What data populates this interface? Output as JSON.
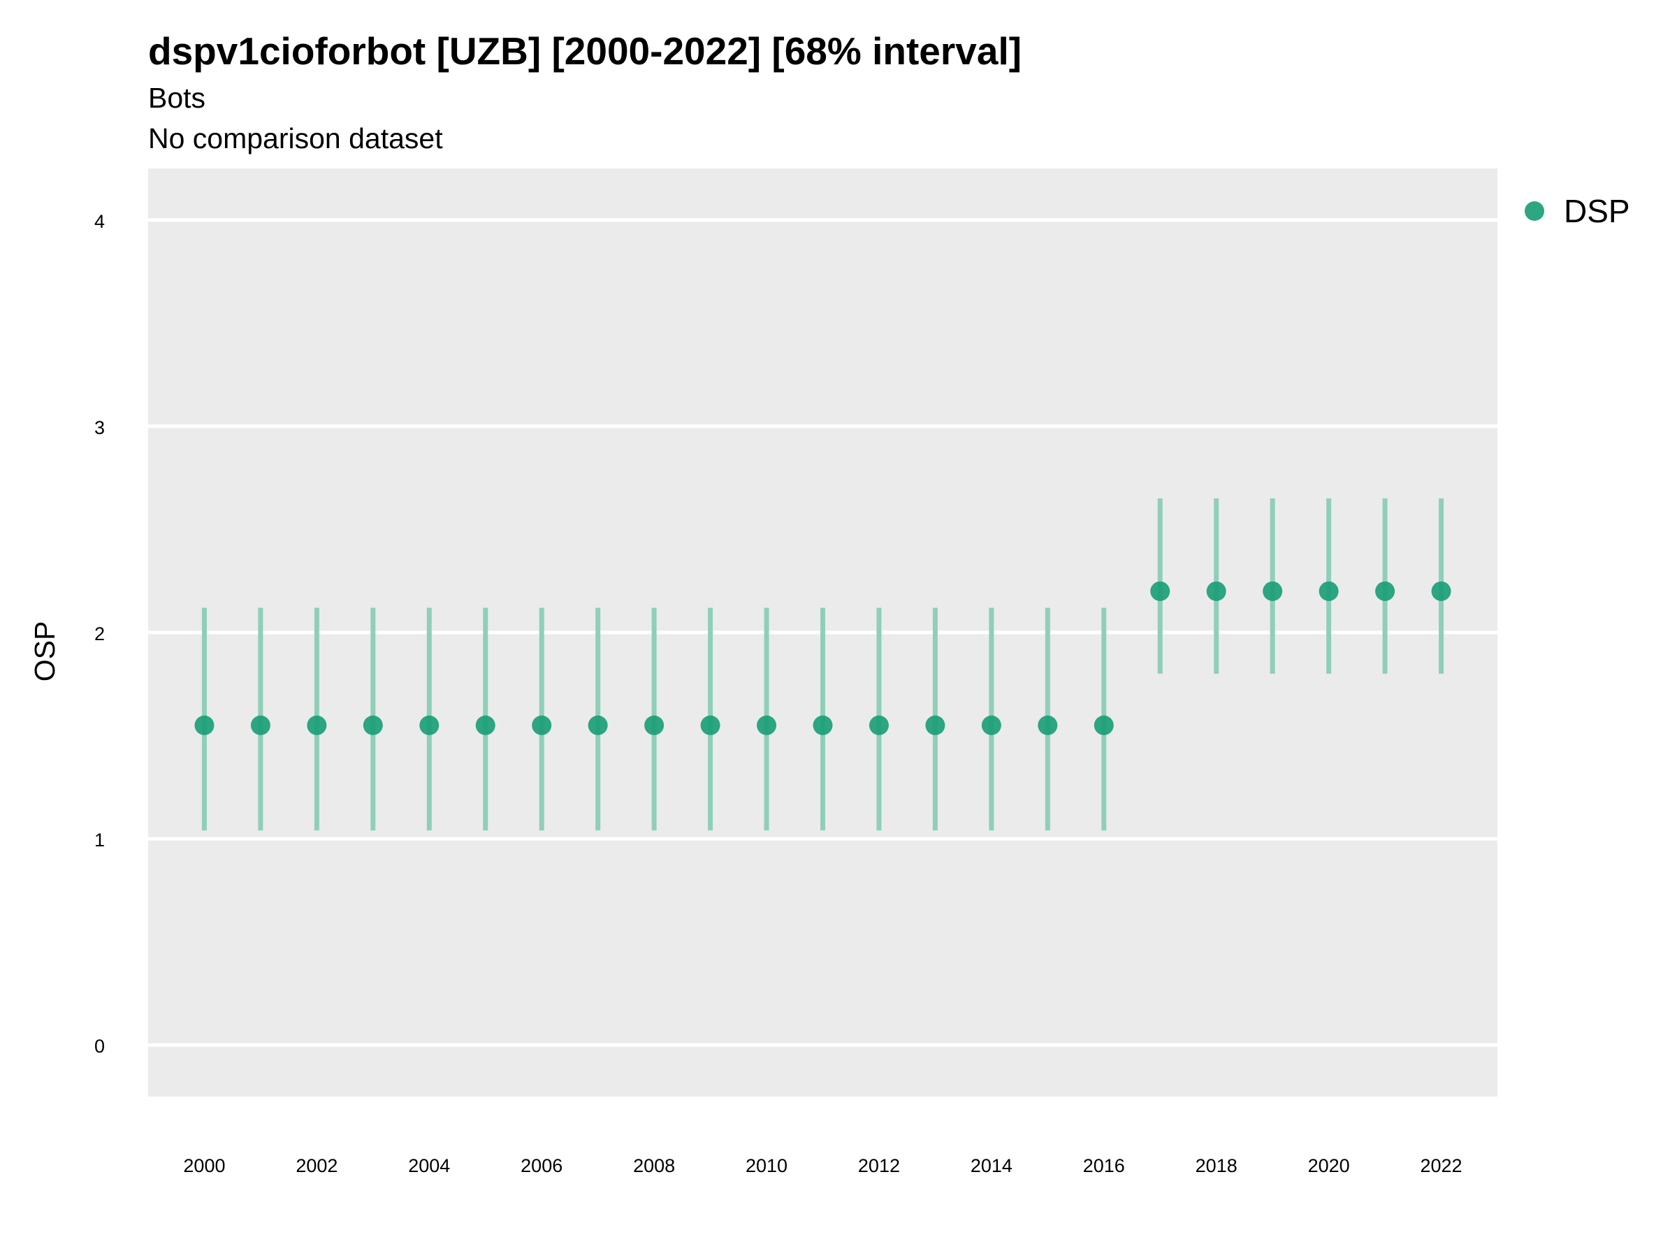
{
  "chart_data": {
    "type": "scatter",
    "title": "dspv1cioforbot [UZB] [2000-2022] [68% interval]",
    "subtitle_lines": [
      "Bots",
      "No comparison dataset"
    ],
    "xlabel": "",
    "ylabel": "OSP",
    "xlim": [
      1999,
      2023
    ],
    "ylim": [
      -0.25,
      4.25
    ],
    "grid": true,
    "legend_position": "top-right",
    "x_ticks": [
      2000,
      2002,
      2004,
      2006,
      2008,
      2010,
      2012,
      2014,
      2016,
      2018,
      2020,
      2022
    ],
    "y_ticks": [
      0,
      1,
      2,
      3,
      4
    ],
    "colors": {
      "point": "#1b9e77",
      "interval": "#8fcfb9",
      "panel": "#ebebeb",
      "gridline": "#ffffff"
    },
    "series": [
      {
        "name": "DSP",
        "x": [
          2000,
          2001,
          2002,
          2003,
          2004,
          2005,
          2006,
          2007,
          2008,
          2009,
          2010,
          2011,
          2012,
          2013,
          2014,
          2015,
          2016,
          2017,
          2018,
          2019,
          2020,
          2021,
          2022
        ],
        "y": [
          1.55,
          1.55,
          1.55,
          1.55,
          1.55,
          1.55,
          1.55,
          1.55,
          1.55,
          1.55,
          1.55,
          1.55,
          1.55,
          1.55,
          1.55,
          1.55,
          1.55,
          2.2,
          2.2,
          2.2,
          2.2,
          2.2,
          2.2
        ],
        "lower": [
          1.04,
          1.04,
          1.04,
          1.04,
          1.04,
          1.04,
          1.04,
          1.04,
          1.04,
          1.04,
          1.04,
          1.04,
          1.04,
          1.04,
          1.04,
          1.04,
          1.04,
          1.8,
          1.8,
          1.8,
          1.8,
          1.8,
          1.8
        ],
        "upper": [
          2.12,
          2.12,
          2.12,
          2.12,
          2.12,
          2.12,
          2.12,
          2.12,
          2.12,
          2.12,
          2.12,
          2.12,
          2.12,
          2.12,
          2.12,
          2.12,
          2.12,
          2.65,
          2.65,
          2.65,
          2.65,
          2.65,
          2.65
        ]
      }
    ]
  }
}
